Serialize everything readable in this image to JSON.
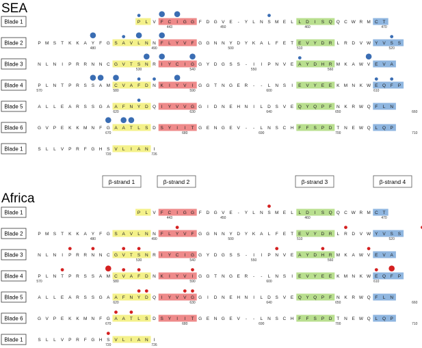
{
  "colors": {
    "strand1": "#f4f18a",
    "strand2": "#ee8a8a",
    "strand3": "#b9df8f",
    "strand4": "#8fb6e0",
    "sea_dot": "#3a6db3",
    "africa_dot": "#d42020"
  },
  "strand_labels": [
    "β-strand 1",
    "β-strand 2",
    "β-strand 3",
    "β-strand 4"
  ],
  "sections": [
    {
      "title": "SEA",
      "dot_color": "sea_dot",
      "rows": [
        {
          "label": "Blade 1",
          "start": 13,
          "seq": "PLVFCIGGFDGVE-YLNSMELLDISQQCWRMCT",
          "numbers": [
            "443",
            "450",
            "460",
            "470"
          ],
          "dots": [
            [
              13,
              1
            ],
            [
              16,
              2
            ],
            [
              18,
              2
            ],
            [
              30,
              1
            ]
          ]
        },
        {
          "label": "Blade 2",
          "start": 0,
          "seq": "PMSTKKAYFGSAVLNNFLYVFGGNNYDYKALFETEVYDRLRDVWYVSS",
          "numbers": [
            "480",
            "490",
            "500",
            "510",
            "520"
          ],
          "dots": [
            [
              7,
              2
            ],
            [
              11,
              1
            ],
            [
              13,
              2
            ],
            [
              16,
              2
            ],
            [
              46,
              1
            ]
          ]
        },
        {
          "label": "Blade 3",
          "start": 0,
          "seq": "NLNIPRRNNCGVTSNRIYCIGGYDGSS-IIPNVEAYDHRMKAWVEVA",
          "numbers": [
            "530",
            "540",
            "550",
            "560"
          ],
          "dots": [
            [
              14,
              2
            ],
            [
              16,
              2
            ],
            [
              20,
              2
            ],
            [
              34,
              1
            ],
            [
              43,
              2
            ]
          ]
        },
        {
          "label": "Blade 4",
          "start": 0,
          "seq": "PLNTPRSSAMCVAFDNKIYVIGGTNGER--LNSIEVYEEKMNKWEQFP",
          "numbers": [
            "570",
            "580",
            "590",
            "600",
            "610"
          ],
          "dots": [
            [
              7,
              2
            ],
            [
              8,
              2
            ],
            [
              10,
              2
            ],
            [
              13,
              1
            ],
            [
              15,
              1
            ],
            [
              18,
              2
            ],
            [
              44,
              1
            ],
            [
              46,
              1
            ]
          ]
        },
        {
          "label": "Blade 5",
          "start": 0,
          "seq": "ALLEARSSGAAFNYDQIYVVGGIDNEHNILDSVEQYQPFNKRWQFLN",
          "numbers": [
            "620",
            "630",
            "640",
            "650",
            "660"
          ],
          "dots": [
            [
              13,
              1
            ]
          ]
        },
        {
          "label": "Blade 6",
          "start": 0,
          "seq": "GVPEKKMNFGAATLSDSYIITGENGEV--LNSCHFFSPDTNEWQLQP",
          "numbers": [
            "670",
            "680",
            "690",
            "700",
            "710"
          ],
          "dots": [
            [
              9,
              2
            ],
            [
              11,
              2
            ],
            [
              12,
              2
            ]
          ]
        },
        {
          "label": "Blade 1",
          "start": 0,
          "seq": "SLLVPRFGHSVLIANI",
          "numbers": [
            "720",
            "726"
          ],
          "dots": []
        }
      ]
    },
    {
      "title": "Africa",
      "dot_color": "africa_dot",
      "rows": [
        {
          "label": "Blade 1",
          "start": 13,
          "seq": "PLVFCIGGFDGVE-YLNSMELLDISQQCWRMCT",
          "numbers": [
            "443",
            "450",
            "460",
            "470"
          ],
          "dots": [
            [
              30,
              1
            ]
          ]
        },
        {
          "label": "Blade 2",
          "start": 0,
          "seq": "PMSTKKAYFGSAVLNNFLYVFGGNNYDYKALFETEVYDRLRDVWYVSS",
          "numbers": [
            "480",
            "490",
            "500",
            "510",
            "520"
          ],
          "dots": [
            [
              18,
              1
            ],
            [
              40,
              1
            ],
            [
              50,
              1
            ],
            [
              54,
              1
            ]
          ]
        },
        {
          "label": "Blade 3",
          "start": 0,
          "seq": "NLNIPRRNNCGVTSNRIYCIGGYDGSS-IIPNVEAYDHRMKAWVEVA",
          "numbers": [
            "530",
            "540",
            "550",
            "560"
          ],
          "dots": [
            [
              4,
              1
            ],
            [
              7,
              1
            ],
            [
              11,
              1
            ],
            [
              13,
              1
            ],
            [
              31,
              1
            ],
            [
              37,
              1
            ],
            [
              43,
              1
            ]
          ]
        },
        {
          "label": "Blade 4",
          "start": 0,
          "seq": "PLNTPRSSAMCVAFDNKIYVIGGTNGER--LNSIEVYEEKMNKWEQFP",
          "numbers": [
            "570",
            "580",
            "590",
            "600",
            "610"
          ],
          "dots": [
            [
              3,
              1
            ],
            [
              9,
              2
            ],
            [
              11,
              1
            ],
            [
              13,
              1
            ],
            [
              20,
              1
            ],
            [
              44,
              1
            ],
            [
              46,
              2
            ]
          ]
        },
        {
          "label": "Blade 5",
          "start": 0,
          "seq": "ALLEARSSGAAFNYDQIYVVGGIDNEHNILDSVEQYQPFNKRWQFLN",
          "numbers": [
            "620",
            "630",
            "640",
            "650",
            "660"
          ],
          "dots": [
            [
              13,
              1
            ],
            [
              14,
              1
            ],
            [
              19,
              1
            ],
            [
              20,
              1
            ]
          ]
        },
        {
          "label": "Blade 6",
          "start": 0,
          "seq": "GVPEKKMNFGAATLSDSYIITGENGEV--LNSCHFFSPDTNEWQLQP",
          "numbers": [
            "670",
            "680",
            "690",
            "700",
            "710"
          ],
          "dots": [
            [
              10,
              1
            ],
            [
              12,
              1
            ]
          ]
        },
        {
          "label": "Blade 1",
          "start": 0,
          "seq": "SLLVPRFGHSVLIANI",
          "numbers": [
            "720",
            "726"
          ],
          "dots": [
            [
              9,
              1
            ]
          ]
        }
      ]
    }
  ]
}
